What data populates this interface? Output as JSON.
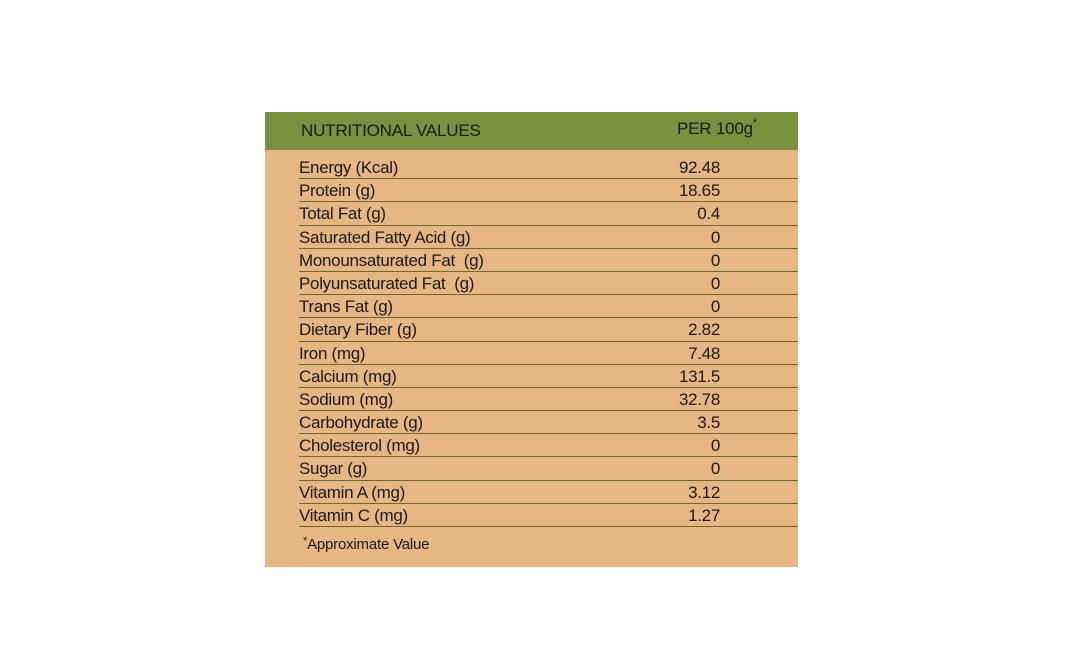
{
  "header": {
    "nutrient_label": "NUTRITIONAL VALUES",
    "per_label": "PER 100g",
    "per_mark": "*"
  },
  "rows": [
    {
      "name": "Energy (Kcal)",
      "value": "92.48"
    },
    {
      "name": "Protein (g)",
      "value": "18.65"
    },
    {
      "name": "Total Fat (g)",
      "value": "0.4"
    },
    {
      "name": "Saturated Fatty Acid (g)",
      "value": "0"
    },
    {
      "name": "Monounsaturated Fat  (g)",
      "value": "0"
    },
    {
      "name": "Polyunsaturated Fat  (g)",
      "value": "0"
    },
    {
      "name": "Trans Fat (g)",
      "value": "0"
    },
    {
      "name": "Dietary Fiber (g)",
      "value": "2.82"
    },
    {
      "name": "Iron (mg)",
      "value": "7.48"
    },
    {
      "name": "Calcium (mg)",
      "value": "131.5"
    },
    {
      "name": "Sodium (mg)",
      "value": "32.78"
    },
    {
      "name": "Carbohydrate (g)",
      "value": "3.5"
    },
    {
      "name": "Cholesterol (mg)",
      "value": "0"
    },
    {
      "name": "Sugar (g)",
      "value": "0"
    },
    {
      "name": "Vitamin A (mg)",
      "value": "3.12"
    },
    {
      "name": "Vitamin C (mg)",
      "value": "1.27"
    }
  ],
  "footnote": {
    "mark": "*",
    "text": "Approximate Value"
  },
  "colors": {
    "header_bg": "#7a9140",
    "card_bg": "#e6b782",
    "rule": "#6f6535"
  }
}
